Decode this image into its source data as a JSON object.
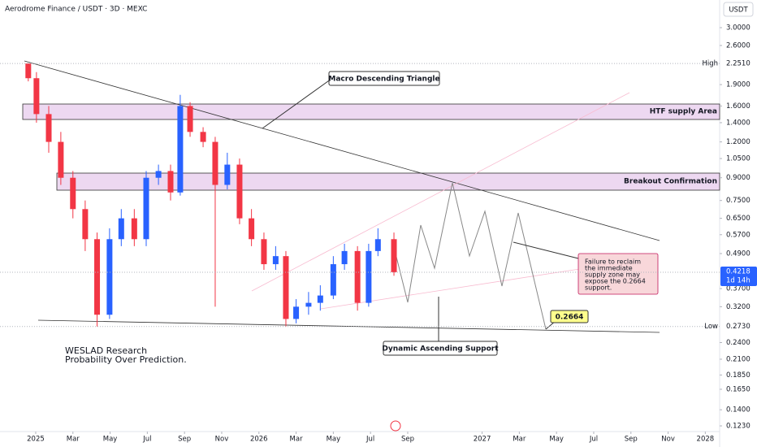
{
  "chart_data": {
    "type": "candlestick",
    "title": "Aerodrome Finance / USDT · 3D · MEXC",
    "currency": "USDT",
    "log_scale": true,
    "up_color": "#2962ff",
    "down_color": "#f23645",
    "xlim": [
      -1.92,
      36.77
    ],
    "xticks": [
      {
        "value": 0,
        "label": "2025"
      },
      {
        "value": 2,
        "label": "Mar"
      },
      {
        "value": 4,
        "label": "May"
      },
      {
        "value": 6,
        "label": "Jul"
      },
      {
        "value": 8,
        "label": "Sep"
      },
      {
        "value": 10,
        "label": "Nov"
      },
      {
        "value": 12,
        "label": "2026"
      },
      {
        "value": 14,
        "label": "Mar"
      },
      {
        "value": 16,
        "label": "May"
      },
      {
        "value": 18,
        "label": "Jul"
      },
      {
        "value": 20,
        "label": "Sep"
      },
      {
        "value": 24,
        "label": "2027"
      },
      {
        "value": 26,
        "label": "Mar"
      },
      {
        "value": 28,
        "label": "May"
      },
      {
        "value": 30,
        "label": "Jul"
      },
      {
        "value": 32,
        "label": "Sep"
      },
      {
        "value": 34,
        "label": "Nov"
      },
      {
        "value": 36,
        "label": "2028"
      }
    ],
    "ylim": [
      0.1183,
      3.745
    ],
    "yticks": [
      {
        "value": 3,
        "label": "3.0000"
      },
      {
        "value": 2.6,
        "label": "2.6000"
      },
      {
        "value": 1.9,
        "label": "1.9000"
      },
      {
        "value": 1.6,
        "label": "1.6000"
      },
      {
        "value": 1.4,
        "label": "1.4000"
      },
      {
        "value": 1.2,
        "label": "1.2000"
      },
      {
        "value": 1.05,
        "label": "1.0500"
      },
      {
        "value": 0.9,
        "label": "0.9000"
      },
      {
        "value": 0.75,
        "label": "0.7500"
      },
      {
        "value": 0.65,
        "label": "0.6500"
      },
      {
        "value": 0.57,
        "label": "0.5700"
      },
      {
        "value": 0.49,
        "label": "0.4900"
      },
      {
        "value": 0.37,
        "label": "0.3700"
      },
      {
        "value": 0.32,
        "label": "0.3200"
      },
      {
        "value": 0.24,
        "label": "0.2400"
      },
      {
        "value": 0.21,
        "label": "0.2100"
      },
      {
        "value": 0.185,
        "label": "0.1850"
      },
      {
        "value": 0.165,
        "label": "0.1650"
      },
      {
        "value": 0.14,
        "label": "0.1400"
      },
      {
        "value": 0.123,
        "label": "0.1230"
      }
    ],
    "high": {
      "value": 2.251,
      "label": "2.2510",
      "tag": "High"
    },
    "low": {
      "value": 0.273,
      "label": "0.2730",
      "tag": "Low"
    },
    "last_price": {
      "value": 0.4218,
      "label": "0.4218",
      "countdown": "1d 14h"
    },
    "x": [
      -0.4,
      0.04,
      0.7,
      1.35,
      2.0,
      2.66,
      3.3,
      3.97,
      4.6,
      5.3,
      5.94,
      6.6,
      7.25,
      7.77,
      8.3,
      9.0,
      9.65,
      10.3,
      10.96,
      11.6,
      12.27,
      12.9,
      13.45,
      14,
      14.67,
      15.3,
      16,
      16.6,
      17.3,
      17.9,
      18.4,
      19.26
    ],
    "open": [
      2.25,
      2.0,
      1.5,
      1.2,
      0.9,
      0.7,
      0.55,
      0.3,
      0.55,
      0.65,
      0.55,
      0.9,
      0.95,
      0.8,
      1.6,
      1.3,
      1.2,
      0.85,
      1.0,
      0.65,
      0.55,
      0.45,
      0.48,
      0.29,
      0.32,
      0.33,
      0.35,
      0.45,
      0.5,
      0.33,
      0.5,
      0.55
    ],
    "high_values": [
      2.251,
      2.1,
      1.6,
      1.3,
      0.95,
      0.75,
      0.58,
      0.6,
      0.7,
      0.7,
      0.95,
      1.0,
      1.0,
      1.75,
      1.65,
      1.35,
      1.25,
      1.1,
      1.05,
      0.7,
      0.58,
      0.52,
      0.5,
      0.34,
      0.36,
      0.38,
      0.48,
      0.53,
      0.52,
      0.53,
      0.6,
      0.58
    ],
    "low_values": [
      1.95,
      1.4,
      1.1,
      0.85,
      0.65,
      0.5,
      0.273,
      0.29,
      0.52,
      0.52,
      0.52,
      0.85,
      0.75,
      0.78,
      1.25,
      1.15,
      0.32,
      0.82,
      0.62,
      0.52,
      0.43,
      0.43,
      0.273,
      0.28,
      0.3,
      0.31,
      0.34,
      0.43,
      0.31,
      0.32,
      0.48,
      0.41
    ],
    "close": [
      2.0,
      1.5,
      1.2,
      0.9,
      0.7,
      0.55,
      0.3,
      0.55,
      0.65,
      0.55,
      0.9,
      0.95,
      0.8,
      1.6,
      1.3,
      1.2,
      0.85,
      1.0,
      0.65,
      0.55,
      0.45,
      0.48,
      0.29,
      0.32,
      0.33,
      0.35,
      0.45,
      0.5,
      0.33,
      0.5,
      0.55,
      0.4218
    ],
    "annotations": {
      "triangle": "Macro Descending Triangle",
      "supply": "HTF supply Area",
      "breakout": "Breakout Confirmation",
      "failure": [
        "Failure to reclaim",
        "the immediate",
        "supply zone may",
        "expose the 0.2664",
        "support."
      ],
      "target": "0.2664",
      "support": "Dynamic Ascending Support",
      "brand": "WESLAD Research",
      "tagline": "Probability Over Prediction."
    }
  }
}
